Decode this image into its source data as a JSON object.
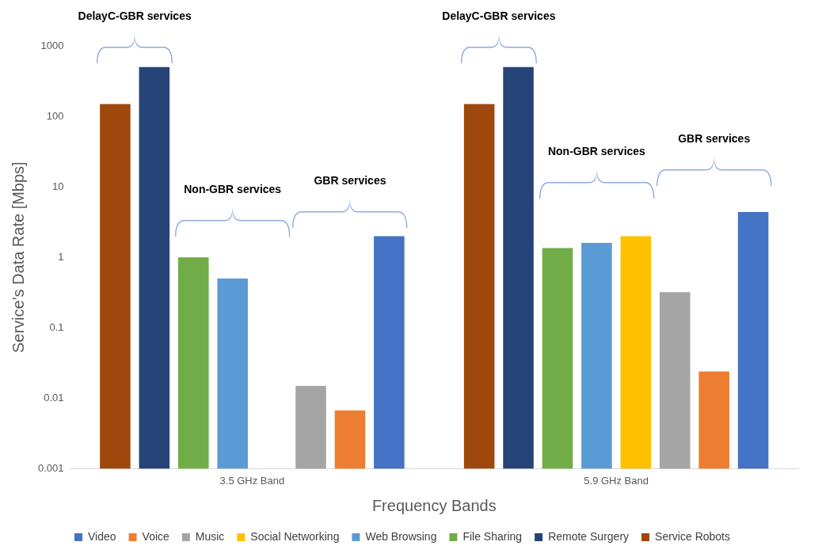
{
  "chart_data": {
    "type": "bar",
    "xlabel": "Frequency Bands",
    "ylabel": "Service's Data Rate [Mbps]",
    "categories": [
      "3.5 GHz Band",
      "5.9 GHz Band"
    ],
    "series": [
      {
        "name": "Service Robots",
        "color": "#9e480e",
        "values": [
          150,
          150
        ]
      },
      {
        "name": "Remote Surgery",
        "color": "#264478",
        "values": [
          500,
          500
        ]
      },
      {
        "name": "File Sharing",
        "color": "#70ad47",
        "values": [
          1,
          1.35
        ]
      },
      {
        "name": "Web Browsing",
        "color": "#5b9bd5",
        "values": [
          0.5,
          1.6
        ]
      },
      {
        "name": "Social Networking",
        "color": "#ffc000",
        "values": [
          null,
          2
        ]
      },
      {
        "name": "Music",
        "color": "#a5a5a5",
        "values": [
          0.015,
          0.32
        ]
      },
      {
        "name": "Voice",
        "color": "#ed7d31",
        "values": [
          0.0067,
          0.024
        ]
      },
      {
        "name": "Video",
        "color": "#4472c4",
        "values": [
          2,
          4.4
        ]
      }
    ],
    "log": "y",
    "ylim": [
      0.001,
      1000
    ],
    "yticks": [
      0.001,
      0.01,
      0.1,
      1,
      10,
      100,
      1000
    ],
    "grid": false,
    "legend": "bottom",
    "annotations": [
      "DelayC-GBR services",
      "Non-GBR services",
      "GBR services",
      "DelayC-GBR services",
      "Non-GBR services",
      "GBR services"
    ]
  }
}
